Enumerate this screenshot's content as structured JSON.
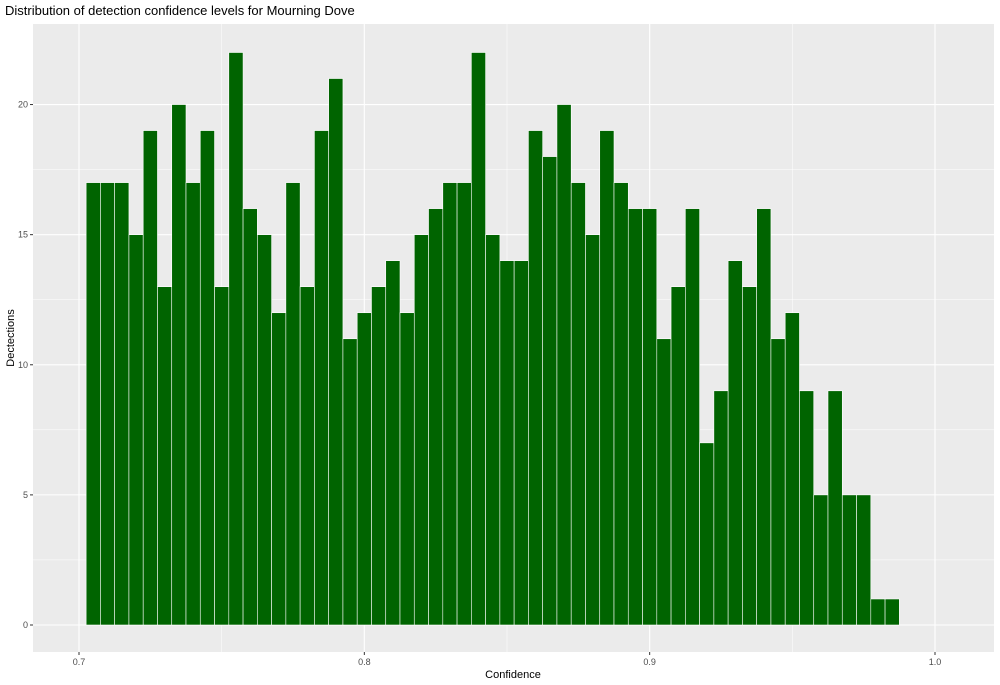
{
  "chart_data": {
    "type": "bar",
    "title": "Distribution of detection confidence levels for Mourning Dove",
    "xlabel": "Confidence",
    "ylabel": "Dectections",
    "bin_width": 0.005,
    "xlim": [
      0.7,
      1.0
    ],
    "ylim": [
      0,
      22
    ],
    "x_ticks": [
      0.7,
      0.8,
      0.9,
      1.0
    ],
    "x_tick_labels": [
      "0.7",
      "0.8",
      "0.9",
      "1.0"
    ],
    "y_ticks": [
      0,
      5,
      10,
      15,
      20
    ],
    "y_tick_labels": [
      "0",
      "5",
      "10",
      "15",
      "20"
    ],
    "bin_centers": [
      0.705,
      0.71,
      0.715,
      0.72,
      0.725,
      0.73,
      0.735,
      0.74,
      0.745,
      0.75,
      0.755,
      0.76,
      0.765,
      0.77,
      0.775,
      0.78,
      0.785,
      0.79,
      0.795,
      0.8,
      0.805,
      0.81,
      0.815,
      0.82,
      0.825,
      0.83,
      0.835,
      0.84,
      0.845,
      0.85,
      0.855,
      0.86,
      0.865,
      0.87,
      0.875,
      0.88,
      0.885,
      0.89,
      0.895,
      0.9,
      0.905,
      0.91,
      0.915,
      0.92,
      0.925,
      0.93,
      0.935,
      0.94,
      0.945,
      0.95,
      0.955,
      0.96,
      0.965,
      0.97,
      0.975,
      0.98,
      0.985
    ],
    "values": [
      17,
      17,
      17,
      15,
      19,
      13,
      20,
      17,
      19,
      13,
      22,
      16,
      15,
      12,
      17,
      13,
      19,
      21,
      11,
      12,
      13,
      14,
      12,
      15,
      16,
      17,
      17,
      22,
      15,
      14,
      14,
      19,
      18,
      20,
      17,
      15,
      19,
      17,
      16,
      16,
      11,
      13,
      16,
      7,
      9,
      14,
      13,
      16,
      11,
      12,
      9,
      5,
      9,
      5,
      5,
      1,
      1
    ],
    "grid": true,
    "colors": {
      "bar_fill": "#006400",
      "bar_outline": "#ffffff",
      "panel_background": "#ebebeb",
      "grid_major": "#ffffff"
    }
  }
}
